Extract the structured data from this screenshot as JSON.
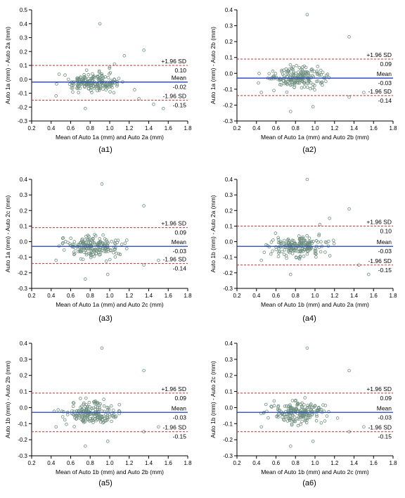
{
  "colors": {
    "mean_line": "#1f3fbf",
    "sd_line": "#c03030",
    "points": "#6f8f7f",
    "axis": "#000000"
  },
  "chart_data": [
    {
      "type": "scatter",
      "caption": "(a1)",
      "xlabel": "Mean of Auto 1a (mm) and Auto 2a (mm)",
      "ylabel": "Auto 1a (mm) - Auto 2a (mm)",
      "xlim": [
        0.2,
        1.8
      ],
      "ylim": [
        -0.3,
        0.5
      ],
      "xticks": [
        "0.2",
        "0.4",
        "0.6",
        "0.8",
        "1.0",
        "1.2",
        "1.4",
        "1.6",
        "1.8"
      ],
      "yticks": [
        "-0.3",
        "-0.2",
        "-0.1",
        "0.0",
        "0.1",
        "0.2",
        "0.3",
        "0.4",
        "0.5"
      ],
      "mean": -0.02,
      "upper": 0.1,
      "lower": -0.15,
      "upper_label": "+1.96 SD",
      "upper_value_label": "0.10",
      "mean_label": "Mean",
      "mean_value_label": "-0.02",
      "lower_label": "-1.96 SD",
      "lower_value_label": "-0.15",
      "outliers": [
        [
          0.9,
          0.4
        ],
        [
          1.35,
          0.21
        ],
        [
          1.15,
          0.17
        ],
        [
          1.0,
          0.09
        ],
        [
          1.05,
          0.11
        ],
        [
          0.75,
          -0.21
        ],
        [
          1.55,
          -0.21
        ],
        [
          1.45,
          -0.18
        ],
        [
          0.45,
          -0.12
        ],
        [
          1.3,
          -0.14
        ]
      ]
    },
    {
      "type": "scatter",
      "caption": "(a2)",
      "xlabel": "Mean of Auto 1a (mm) and Auto 2b (mm)",
      "ylabel": "Auto 1a (mm) - Auto 2b (mm)",
      "xlim": [
        0.2,
        1.8
      ],
      "ylim": [
        -0.3,
        0.4
      ],
      "xticks": [
        "0.2",
        "0.4",
        "0.6",
        "0.8",
        "1.0",
        "1.2",
        "1.4",
        "1.6",
        "1.8"
      ],
      "yticks": [
        "-0.3",
        "-0.2",
        "-0.1",
        "0.0",
        "0.1",
        "0.2",
        "0.3",
        "0.4"
      ],
      "mean": -0.03,
      "upper": 0.09,
      "lower": -0.14,
      "upper_label": "+1.96 SD",
      "upper_value_label": "0.09",
      "mean_label": "Mean",
      "mean_value_label": "-0.03",
      "lower_label": "-1.96 SD",
      "lower_value_label": "-0.14",
      "outliers": [
        [
          0.92,
          0.37
        ],
        [
          1.35,
          0.23
        ],
        [
          0.75,
          -0.24
        ],
        [
          0.98,
          -0.21
        ],
        [
          1.5,
          -0.12
        ],
        [
          1.35,
          -0.15
        ],
        [
          0.45,
          -0.12
        ]
      ]
    },
    {
      "type": "scatter",
      "caption": "(a3)",
      "xlabel": "Mean of Auto 1a (mm) and Auto 2c (mm)",
      "ylabel": "Auto 1a (mm) - Auto 2c (mm)",
      "xlim": [
        0.2,
        1.8
      ],
      "ylim": [
        -0.3,
        0.4
      ],
      "xticks": [
        "0.2",
        "0.4",
        "0.6",
        "0.8",
        "1.0",
        "1.2",
        "1.4",
        "1.6",
        "1.8"
      ],
      "yticks": [
        "-0.3",
        "-0.2",
        "-0.1",
        "0.0",
        "0.1",
        "0.2",
        "0.3",
        "0.4"
      ],
      "mean": -0.03,
      "upper": 0.09,
      "lower": -0.14,
      "upper_label": "+1.96 SD",
      "upper_value_label": "0.09",
      "mean_label": "Mean",
      "mean_value_label": "-0.03",
      "lower_label": "-1.96 SD",
      "lower_value_label": "-0.14",
      "outliers": [
        [
          0.92,
          0.37
        ],
        [
          1.35,
          0.23
        ],
        [
          0.75,
          -0.24
        ],
        [
          0.98,
          -0.21
        ],
        [
          1.5,
          -0.12
        ],
        [
          1.35,
          -0.15
        ],
        [
          0.45,
          -0.12
        ]
      ]
    },
    {
      "type": "scatter",
      "caption": "(a4)",
      "xlabel": "Mean of Auto 1b (mm) and Auto 2a (mm)",
      "ylabel": "Auto 1b (mm) - Auto 2a (mm)",
      "xlim": [
        0.2,
        1.8
      ],
      "ylim": [
        -0.3,
        0.4
      ],
      "xticks": [
        "0.2",
        "0.4",
        "0.6",
        "0.8",
        "1.0",
        "1.2",
        "1.4",
        "1.6",
        "1.8"
      ],
      "yticks": [
        "-0.3",
        "-0.2",
        "-0.1",
        "0.0",
        "0.1",
        "0.2",
        "0.3",
        "0.4"
      ],
      "mean": -0.03,
      "upper": 0.1,
      "lower": -0.15,
      "upper_label": "+1.96 SD",
      "upper_value_label": "0.10",
      "mean_label": "Mean",
      "mean_value_label": "-0.03",
      "lower_label": "-1.96 SD",
      "lower_value_label": "-0.15",
      "outliers": [
        [
          0.92,
          0.4
        ],
        [
          1.35,
          0.21
        ],
        [
          1.15,
          0.15
        ],
        [
          1.05,
          0.11
        ],
        [
          0.75,
          -0.21
        ],
        [
          1.55,
          -0.21
        ],
        [
          1.45,
          -0.15
        ],
        [
          0.45,
          -0.12
        ]
      ]
    },
    {
      "type": "scatter",
      "caption": "(a5)",
      "xlabel": "Mean of Auto 1b (mm) and Auto 2b (mm)",
      "ylabel": "Auto 1b (mm) - Auto 2b (mm)",
      "xlim": [
        0.2,
        1.8
      ],
      "ylim": [
        -0.3,
        0.4
      ],
      "xticks": [
        "0.2",
        "0.4",
        "0.6",
        "0.8",
        "1.0",
        "1.2",
        "1.4",
        "1.6",
        "1.8"
      ],
      "yticks": [
        "-0.3",
        "-0.2",
        "-0.1",
        "0.0",
        "0.1",
        "0.2",
        "0.3",
        "0.4"
      ],
      "mean": -0.03,
      "upper": 0.09,
      "lower": -0.15,
      "upper_label": "+1.96 SD",
      "upper_value_label": "0.09",
      "mean_label": "Mean",
      "mean_value_label": "-0.03",
      "lower_label": "-1.96 SD",
      "lower_value_label": "-0.15",
      "outliers": [
        [
          0.92,
          0.37
        ],
        [
          1.35,
          0.23
        ],
        [
          0.75,
          -0.24
        ],
        [
          0.98,
          -0.21
        ],
        [
          1.5,
          -0.12
        ],
        [
          1.35,
          -0.15
        ],
        [
          0.45,
          -0.12
        ]
      ]
    },
    {
      "type": "scatter",
      "caption": "(a6)",
      "xlabel": "Mean of Auto 1b (mm) and Auto 2c (mm)",
      "ylabel": "Auto 1b (mm) - Auto 2c (mm)",
      "xlim": [
        0.2,
        1.8
      ],
      "ylim": [
        -0.3,
        0.4
      ],
      "xticks": [
        "0.2",
        "0.4",
        "0.6",
        "0.8",
        "1.0",
        "1.2",
        "1.4",
        "1.6",
        "1.8"
      ],
      "yticks": [
        "-0.3",
        "-0.2",
        "-0.1",
        "0.0",
        "0.1",
        "0.2",
        "0.3",
        "0.4"
      ],
      "mean": -0.03,
      "upper": 0.09,
      "lower": -0.15,
      "upper_label": "+1.96 SD",
      "upper_value_label": "0.09",
      "mean_label": "Mean",
      "mean_value_label": "-0.03",
      "lower_label": "-1.96 SD",
      "lower_value_label": "-0.15",
      "outliers": [
        [
          0.92,
          0.37
        ],
        [
          1.35,
          0.23
        ],
        [
          0.75,
          -0.24
        ],
        [
          0.98,
          -0.21
        ],
        [
          1.5,
          -0.12
        ],
        [
          1.35,
          -0.15
        ],
        [
          0.45,
          -0.12
        ]
      ]
    }
  ]
}
